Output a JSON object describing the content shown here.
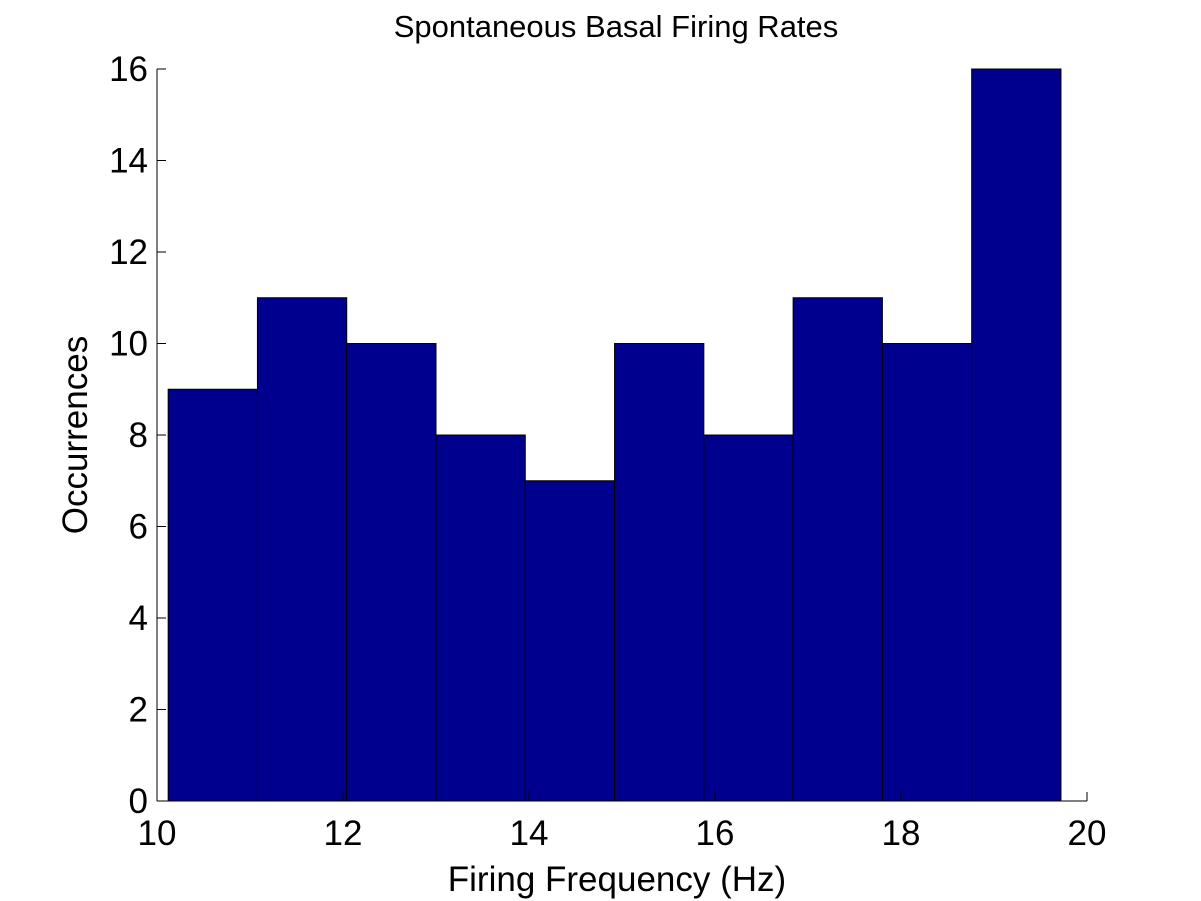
{
  "chart_data": {
    "type": "bar",
    "title": "Spontaneous Basal Firing Rates",
    "xlabel": "Firing Frequency (Hz)",
    "ylabel": "Occurrences",
    "xlim": [
      10,
      20
    ],
    "ylim": [
      0,
      16
    ],
    "xticks": [
      10,
      12,
      14,
      16,
      18,
      20
    ],
    "yticks": [
      0,
      2,
      4,
      6,
      8,
      10,
      12,
      14,
      16
    ],
    "bins": [
      {
        "start": 10.12,
        "end": 11.08,
        "value": 9
      },
      {
        "start": 11.08,
        "end": 12.04,
        "value": 11
      },
      {
        "start": 12.04,
        "end": 13.0,
        "value": 10
      },
      {
        "start": 13.0,
        "end": 13.96,
        "value": 8
      },
      {
        "start": 13.96,
        "end": 14.92,
        "value": 7
      },
      {
        "start": 14.92,
        "end": 15.88,
        "value": 10
      },
      {
        "start": 15.88,
        "end": 16.84,
        "value": 8
      },
      {
        "start": 16.84,
        "end": 17.8,
        "value": 11
      },
      {
        "start": 17.8,
        "end": 18.76,
        "value": 10
      },
      {
        "start": 18.76,
        "end": 19.72,
        "value": 16
      }
    ],
    "bar_color": "#00008f",
    "edge_color": "#000000",
    "grid": false
  }
}
